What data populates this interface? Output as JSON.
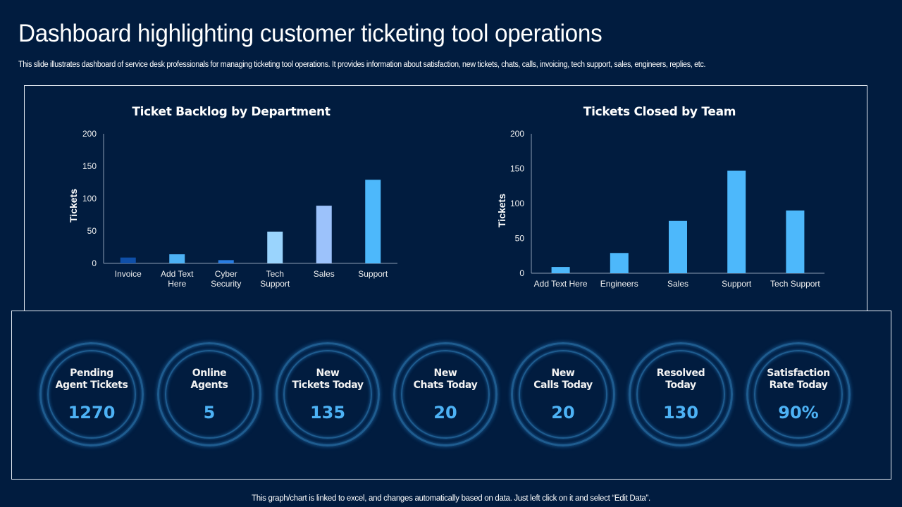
{
  "header": {
    "title": "Dashboard highlighting customer ticketing tool operations",
    "subtitle": "This slide illustrates dashboard of service desk professionals for managing ticketing tool operations. It provides information about satisfaction, new tickets, chats, calls, invoicing, tech support, sales, engineers, replies, etc."
  },
  "chart_data": [
    {
      "type": "bar",
      "title": "Ticket Backlog by Department",
      "xlabel": "",
      "ylabel": "Tickets",
      "ylim": [
        0,
        200
      ],
      "yticks": [
        0,
        50,
        100,
        150,
        200
      ],
      "grid": false,
      "legend": "none",
      "categories": [
        "Invoice",
        "Add Text Here",
        "Cyber Security",
        "Tech Support",
        "Sales",
        "Support"
      ],
      "category_lines": [
        [
          "Invoice"
        ],
        [
          "Add Text",
          "Here"
        ],
        [
          "Cyber",
          "Security"
        ],
        [
          "Tech",
          "Support"
        ],
        [
          "Sales"
        ],
        [
          "Support"
        ]
      ],
      "values": [
        9,
        14,
        5,
        49,
        89,
        129
      ],
      "colors": [
        "#0f4fa8",
        "#4db2f5",
        "#2a7de1",
        "#9ad4fd",
        "#9cc2fb",
        "#4db8fb"
      ]
    },
    {
      "type": "bar",
      "title": "Tickets Closed by Team",
      "xlabel": "",
      "ylabel": "Tickets",
      "ylim": [
        0,
        200
      ],
      "yticks": [
        0,
        50,
        100,
        150,
        200
      ],
      "grid": false,
      "legend": "none",
      "categories": [
        "Add Text Here",
        "Engineers",
        "Sales",
        "Support",
        "Tech Support"
      ],
      "category_lines": [
        [
          "Add Text Here"
        ],
        [
          "Engineers"
        ],
        [
          "Sales"
        ],
        [
          "Support"
        ],
        [
          "Tech Support"
        ]
      ],
      "values": [
        9,
        29,
        75,
        147,
        90
      ],
      "colors": [
        "#4db8fb",
        "#4db8fb",
        "#4db8fb",
        "#4db8fb",
        "#4db8fb"
      ]
    }
  ],
  "kpis": [
    {
      "label": "Pending\nAgent Tickets",
      "value": "1270"
    },
    {
      "label": "Online\nAgents",
      "value": "5"
    },
    {
      "label": "New\nTickets Today",
      "value": "135"
    },
    {
      "label": "New\nChats Today",
      "value": "20"
    },
    {
      "label": "New\nCalls Today",
      "value": "20"
    },
    {
      "label": "Resolved\nToday",
      "value": "130"
    },
    {
      "label": "Satisfaction\nRate Today",
      "value": "90%"
    }
  ],
  "footer": {
    "note": "This graph/chart is linked to excel, and changes automatically based on data. Just left click on it and select “Edit Data”."
  }
}
